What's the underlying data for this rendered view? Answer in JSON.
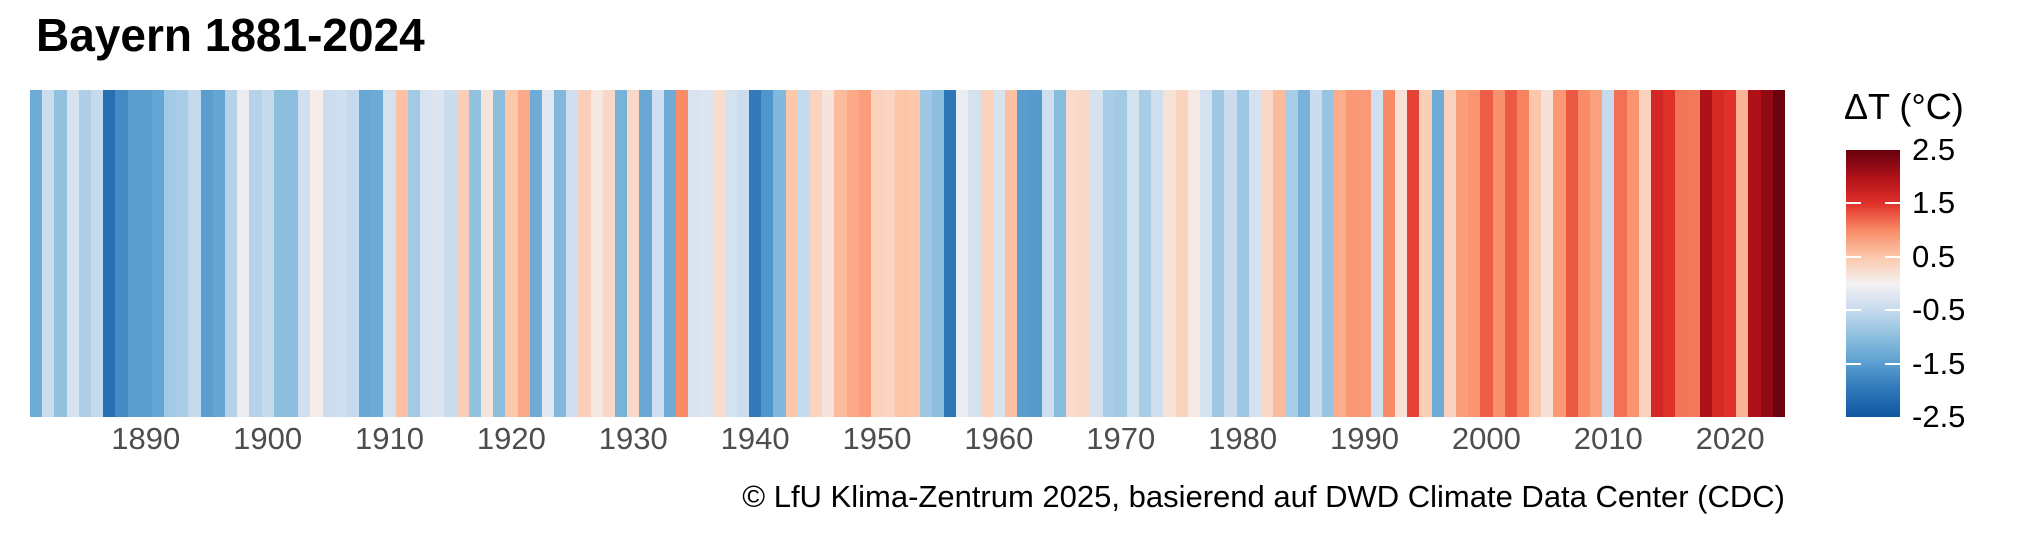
{
  "chart_data": {
    "type": "heatmap",
    "subtype": "warming-stripes",
    "title": "Bayern 1881-2024",
    "caption": "© LfU Klima-Zentrum 2025, basierend auf DWD Climate Data Center (CDC)",
    "year_start": 1881,
    "year_end": 2024,
    "values": [
      -1.3,
      -0.45,
      -0.95,
      -0.3,
      -0.7,
      -0.5,
      -2.1,
      -1.75,
      -1.5,
      -1.5,
      -1.4,
      -0.8,
      -0.75,
      -0.5,
      -1.5,
      -1.4,
      -0.65,
      -0.1,
      -0.65,
      -0.5,
      -1.0,
      -1.0,
      -0.4,
      0.05,
      -0.45,
      -0.4,
      -0.5,
      -1.35,
      -1.3,
      -0.35,
      0.55,
      -0.8,
      -0.3,
      -0.25,
      -0.45,
      0.4,
      -0.95,
      0.15,
      -1.0,
      0.5,
      0.75,
      -1.3,
      -0.2,
      -1.1,
      -0.4,
      0.4,
      0.12,
      0.3,
      -1.2,
      0.3,
      -1.35,
      -0.4,
      -1.3,
      1.0,
      -0.3,
      -0.25,
      0.25,
      -0.35,
      -0.45,
      -1.95,
      -1.6,
      -1.1,
      0.5,
      -0.5,
      0.35,
      0.15,
      0.6,
      0.75,
      0.85,
      0.38,
      0.35,
      0.52,
      0.5,
      -0.85,
      -1.0,
      -2.0,
      -0.1,
      -0.35,
      0.36,
      -0.3,
      0.55,
      -1.5,
      -1.55,
      -0.4,
      -1.05,
      0.26,
      0.3,
      -0.35,
      -0.75,
      -0.8,
      -0.35,
      -0.75,
      -0.4,
      0.18,
      0.36,
      0.1,
      -0.35,
      -0.85,
      -0.45,
      -0.85,
      -0.35,
      0.3,
      0.6,
      -0.75,
      -1.2,
      -0.45,
      -0.9,
      0.72,
      0.9,
      0.88,
      -0.4,
      1.0,
      0.2,
      1.4,
      0.42,
      -1.3,
      0.38,
      0.85,
      0.92,
      1.25,
      0.95,
      1.27,
      1.05,
      0.5,
      0.2,
      0.9,
      1.28,
      1.0,
      0.82,
      -0.5,
      1.15,
      0.93,
      0.38,
      1.65,
      1.5,
      1.12,
      1.1,
      2.0,
      1.6,
      1.5,
      0.65,
      2.0,
      2.2,
      2.45
    ],
    "x_ticks": [
      1890,
      1900,
      1910,
      1920,
      1930,
      1940,
      1950,
      1960,
      1970,
      1980,
      1990,
      2000,
      2010,
      2020
    ],
    "xlabel": "",
    "ylabel": "",
    "grid": false,
    "legend_position": "right",
    "colorbar": {
      "title": "ΔT (°C)",
      "min": -2.5,
      "max": 2.5,
      "ticks": [
        "2.5",
        "1.5",
        "0.5",
        "-0.5",
        "-1.5",
        "-2.5"
      ],
      "tick_values": [
        2.5,
        1.5,
        0.5,
        -0.5,
        -1.5,
        -2.5
      ],
      "color_stops": [
        {
          "v": -2.5,
          "c": "#0d57a1"
        },
        {
          "v": -2.0,
          "c": "#2d76b7"
        },
        {
          "v": -1.5,
          "c": "#5a9ed0"
        },
        {
          "v": -1.0,
          "c": "#8cbfde"
        },
        {
          "v": -0.5,
          "c": "#c6daee"
        },
        {
          "v": 0.0,
          "c": "#f4f1f1"
        },
        {
          "v": 0.5,
          "c": "#fcc7ab"
        },
        {
          "v": 1.0,
          "c": "#f98b66"
        },
        {
          "v": 1.5,
          "c": "#e0302a"
        },
        {
          "v": 2.0,
          "c": "#ae1118"
        },
        {
          "v": 2.5,
          "c": "#67010f"
        }
      ]
    }
  },
  "colors": {
    "background": "#ffffff",
    "title_text": "#000000",
    "axis_text": "#4d4d4d",
    "caption_text": "#000000",
    "tick_mark": "#ffffff"
  }
}
